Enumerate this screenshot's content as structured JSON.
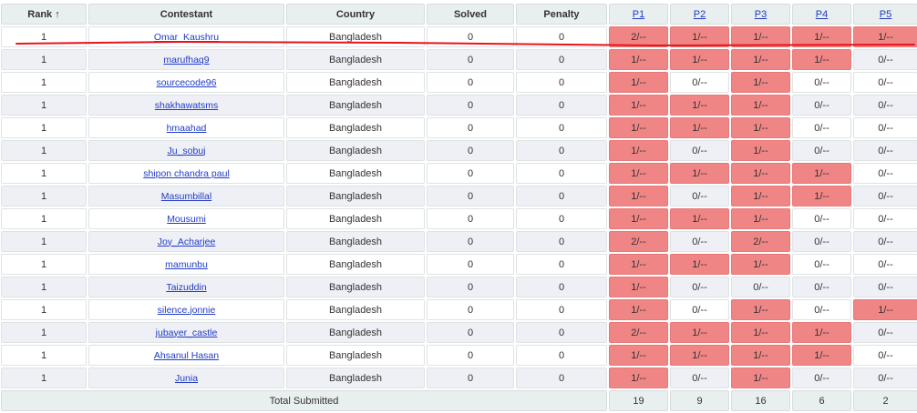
{
  "header": {
    "rank": "Rank ↑",
    "contestant": "Contestant",
    "country": "Country",
    "solved": "Solved",
    "penalty": "Penalty",
    "problems": [
      "P1",
      "P2",
      "P3",
      "P4",
      "P5"
    ]
  },
  "rows": [
    {
      "rank": "1",
      "name": "Omar_Kaushru",
      "country": "Bangladesh",
      "solved": "0",
      "penalty": "0",
      "p": [
        "2/--",
        "1/--",
        "1/--",
        "1/--",
        "1/--"
      ]
    },
    {
      "rank": "1",
      "name": "marufhaq9",
      "country": "Bangladesh",
      "solved": "0",
      "penalty": "0",
      "p": [
        "1/--",
        "1/--",
        "1/--",
        "1/--",
        "0/--"
      ]
    },
    {
      "rank": "1",
      "name": "sourcecode96",
      "country": "Bangladesh",
      "solved": "0",
      "penalty": "0",
      "p": [
        "1/--",
        "0/--",
        "1/--",
        "0/--",
        "0/--"
      ]
    },
    {
      "rank": "1",
      "name": "shakhawatsms",
      "country": "Bangladesh",
      "solved": "0",
      "penalty": "0",
      "p": [
        "1/--",
        "1/--",
        "1/--",
        "0/--",
        "0/--"
      ]
    },
    {
      "rank": "1",
      "name": "hmaahad",
      "country": "Bangladesh",
      "solved": "0",
      "penalty": "0",
      "p": [
        "1/--",
        "1/--",
        "1/--",
        "0/--",
        "0/--"
      ]
    },
    {
      "rank": "1",
      "name": "Ju_sobuj",
      "country": "Bangladesh",
      "solved": "0",
      "penalty": "0",
      "p": [
        "1/--",
        "0/--",
        "1/--",
        "0/--",
        "0/--"
      ]
    },
    {
      "rank": "1",
      "name": "shipon chandra paul",
      "country": "Bangladesh",
      "solved": "0",
      "penalty": "0",
      "p": [
        "1/--",
        "1/--",
        "1/--",
        "1/--",
        "0/--"
      ]
    },
    {
      "rank": "1",
      "name": "Masumbillal",
      "country": "Bangladesh",
      "solved": "0",
      "penalty": "0",
      "p": [
        "1/--",
        "0/--",
        "1/--",
        "1/--",
        "0/--"
      ]
    },
    {
      "rank": "1",
      "name": "Mousumi",
      "country": "Bangladesh",
      "solved": "0",
      "penalty": "0",
      "p": [
        "1/--",
        "1/--",
        "1/--",
        "0/--",
        "0/--"
      ]
    },
    {
      "rank": "1",
      "name": "Joy_Acharjee",
      "country": "Bangladesh",
      "solved": "0",
      "penalty": "0",
      "p": [
        "2/--",
        "0/--",
        "2/--",
        "0/--",
        "0/--"
      ]
    },
    {
      "rank": "1",
      "name": "mamunbu",
      "country": "Bangladesh",
      "solved": "0",
      "penalty": "0",
      "p": [
        "1/--",
        "1/--",
        "1/--",
        "0/--",
        "0/--"
      ]
    },
    {
      "rank": "1",
      "name": "Taizuddin",
      "country": "Bangladesh",
      "solved": "0",
      "penalty": "0",
      "p": [
        "1/--",
        "0/--",
        "0/--",
        "0/--",
        "0/--"
      ]
    },
    {
      "rank": "1",
      "name": "silence.jonnie",
      "country": "Bangladesh",
      "solved": "0",
      "penalty": "0",
      "p": [
        "1/--",
        "0/--",
        "1/--",
        "0/--",
        "1/--"
      ]
    },
    {
      "rank": "1",
      "name": "jubayer_castle",
      "country": "Bangladesh",
      "solved": "0",
      "penalty": "0",
      "p": [
        "2/--",
        "1/--",
        "1/--",
        "1/--",
        "0/--"
      ]
    },
    {
      "rank": "1",
      "name": "Ahsanul Hasan",
      "country": "Bangladesh",
      "solved": "0",
      "penalty": "0",
      "p": [
        "1/--",
        "1/--",
        "1/--",
        "1/--",
        "0/--"
      ]
    },
    {
      "rank": "1",
      "name": "Junia",
      "country": "Bangladesh",
      "solved": "0",
      "penalty": "0",
      "p": [
        "1/--",
        "0/--",
        "1/--",
        "0/--",
        "0/--"
      ]
    }
  ],
  "footer": {
    "label": "Total Submitted",
    "totals": [
      "19",
      "9",
      "16",
      "6",
      "2"
    ]
  },
  "colors": {
    "attempted_cell": "#f08585",
    "link": "#1f3cc6",
    "annotation_line": "#e8141c"
  }
}
